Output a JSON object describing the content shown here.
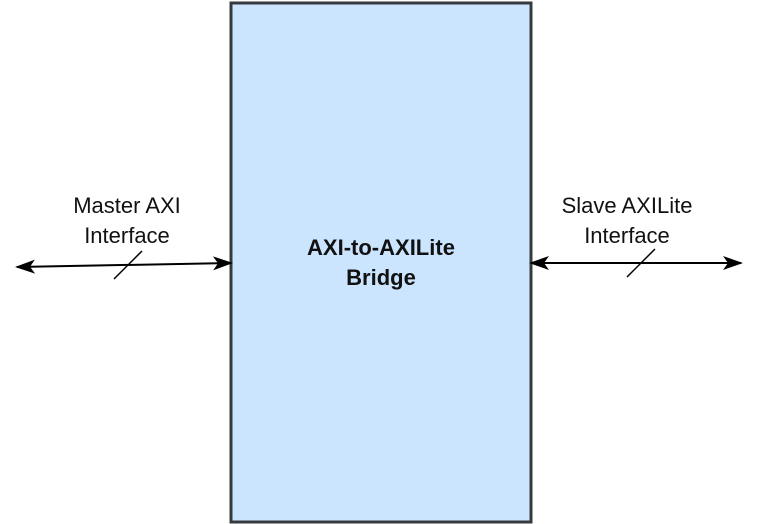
{
  "bridge": {
    "line1": "AXI-to-AXILite",
    "line2": "Bridge",
    "fill": "#cce5ff",
    "stroke": "#36393d"
  },
  "master_interface": {
    "line1": "Master AXI",
    "line2": "Interface"
  },
  "slave_interface": {
    "line1": "Slave AXILite",
    "line2": "Interface"
  },
  "colors": {
    "arrow": "#000000",
    "text": "#111111"
  }
}
